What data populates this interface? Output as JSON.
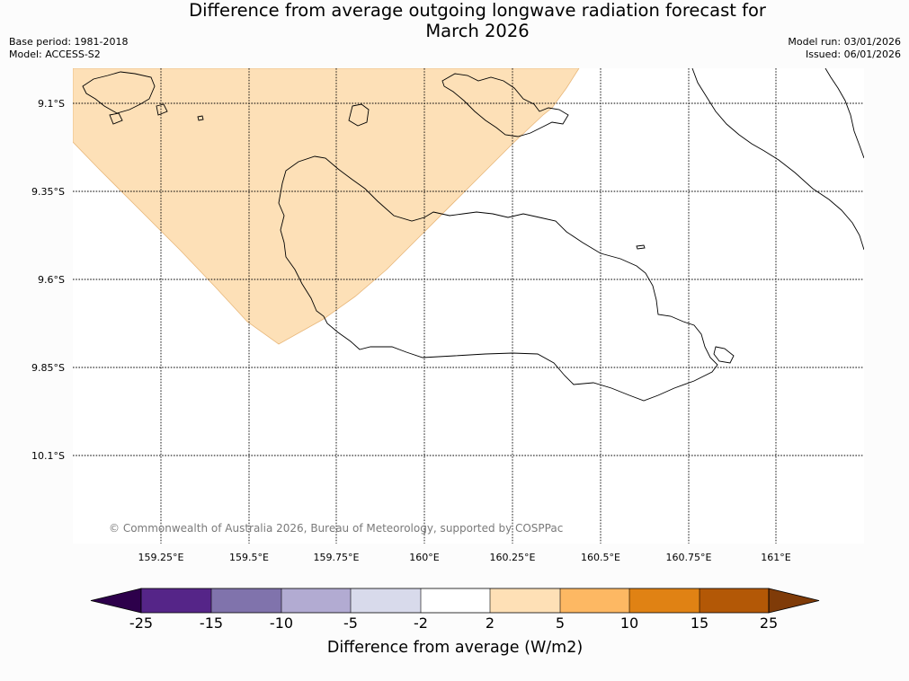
{
  "title": {
    "line1": "Difference from average outgoing longwave radiation forecast for",
    "line2": "March 2026"
  },
  "meta": {
    "base_period": "Base period: 1981-2018",
    "model": "Model: ACCESS-S2",
    "model_run": "Model run: 03/01/2026",
    "issued": "Issued: 06/01/2026"
  },
  "map": {
    "lat_labels": [
      "9.1°S",
      "9.35°S",
      "9.6°S",
      "9.85°S",
      "10.1°S"
    ],
    "lon_labels": [
      "159.25°E",
      "159.5°E",
      "159.75°E",
      "160°E",
      "160.25°E",
      "160.5°E",
      "160.75°E",
      "161°E"
    ],
    "copyright": "© Commonwealth of Australia 2026, Bureau of Meteorology, supported by COSPPac",
    "anomaly_fill_color": "#fde0b7",
    "coast_color": "#000000",
    "grid_color": "#000000"
  },
  "colorbar": {
    "ticks": [
      "-25",
      "-15",
      "-10",
      "-5",
      "-2",
      "2",
      "5",
      "10",
      "15",
      "25"
    ],
    "colors": [
      "#552588",
      "#8073ac",
      "#b2abd2",
      "#d8daeb",
      "#ffffff",
      "#fee0b6",
      "#fdb863",
      "#e08214",
      "#b35806"
    ],
    "under_color": "#2d004b",
    "over_color": "#7f3b08",
    "label": "Difference from average (W/m2)"
  }
}
